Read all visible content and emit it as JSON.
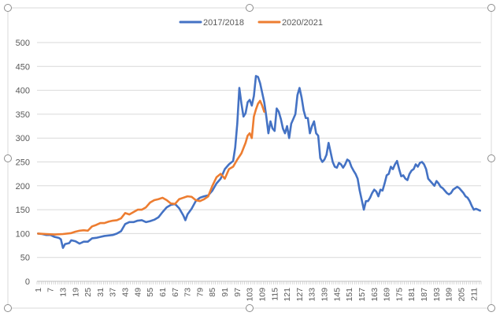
{
  "chart_data": {
    "type": "line",
    "title": "",
    "xlabel": "",
    "ylabel": "",
    "legend_position": "top",
    "grid": {
      "y_major": true,
      "x_major": false
    },
    "ylim": [
      0,
      500
    ],
    "y_ticks": [
      0,
      50,
      100,
      150,
      200,
      250,
      300,
      350,
      400,
      450,
      500
    ],
    "x_range": [
      1,
      214
    ],
    "x_tick_labels": [
      1,
      7,
      13,
      19,
      25,
      31,
      37,
      43,
      49,
      55,
      61,
      67,
      73,
      79,
      85,
      91,
      97,
      103,
      109,
      115,
      121,
      127,
      133,
      139,
      145,
      151,
      157,
      163,
      169,
      175,
      181,
      187,
      193,
      199,
      205,
      211
    ],
    "series": [
      {
        "name": "2017/2018",
        "color": "#4472C4",
        "points": [
          [
            1,
            100
          ],
          [
            3,
            99
          ],
          [
            5,
            97
          ],
          [
            7,
            97
          ],
          [
            9,
            93
          ],
          [
            11,
            91
          ],
          [
            12,
            88
          ],
          [
            13,
            70
          ],
          [
            14,
            78
          ],
          [
            16,
            80
          ],
          [
            17,
            86
          ],
          [
            19,
            84
          ],
          [
            21,
            79
          ],
          [
            23,
            83
          ],
          [
            25,
            83
          ],
          [
            27,
            90
          ],
          [
            29,
            91
          ],
          [
            31,
            93
          ],
          [
            33,
            95
          ],
          [
            35,
            96
          ],
          [
            37,
            97
          ],
          [
            39,
            100
          ],
          [
            41,
            105
          ],
          [
            43,
            120
          ],
          [
            45,
            124
          ],
          [
            47,
            124
          ],
          [
            49,
            127
          ],
          [
            51,
            128
          ],
          [
            53,
            124
          ],
          [
            55,
            126
          ],
          [
            57,
            129
          ],
          [
            59,
            134
          ],
          [
            61,
            145
          ],
          [
            63,
            155
          ],
          [
            65,
            160
          ],
          [
            67,
            162
          ],
          [
            69,
            153
          ],
          [
            71,
            138
          ],
          [
            72,
            128
          ],
          [
            73,
            140
          ],
          [
            75,
            152
          ],
          [
            77,
            168
          ],
          [
            79,
            175
          ],
          [
            81,
            178
          ],
          [
            83,
            180
          ],
          [
            85,
            190
          ],
          [
            87,
            205
          ],
          [
            89,
            215
          ],
          [
            91,
            235
          ],
          [
            93,
            245
          ],
          [
            95,
            252
          ],
          [
            96,
            280
          ],
          [
            97,
            330
          ],
          [
            98,
            405
          ],
          [
            99,
            372
          ],
          [
            100,
            345
          ],
          [
            101,
            352
          ],
          [
            102,
            375
          ],
          [
            103,
            380
          ],
          [
            104,
            368
          ],
          [
            105,
            388
          ],
          [
            106,
            430
          ],
          [
            107,
            428
          ],
          [
            108,
            415
          ],
          [
            109,
            395
          ],
          [
            110,
            375
          ],
          [
            111,
            345
          ],
          [
            112,
            310
          ],
          [
            113,
            335
          ],
          [
            114,
            320
          ],
          [
            115,
            315
          ],
          [
            116,
            362
          ],
          [
            117,
            355
          ],
          [
            118,
            340
          ],
          [
            119,
            320
          ],
          [
            120,
            310
          ],
          [
            121,
            325
          ],
          [
            122,
            300
          ],
          [
            123,
            330
          ],
          [
            124,
            340
          ],
          [
            125,
            350
          ],
          [
            126,
            390
          ],
          [
            127,
            405
          ],
          [
            128,
            385
          ],
          [
            129,
            358
          ],
          [
            130,
            342
          ],
          [
            131,
            342
          ],
          [
            132,
            310
          ],
          [
            133,
            325
          ],
          [
            134,
            335
          ],
          [
            135,
            310
          ],
          [
            136,
            305
          ],
          [
            137,
            258
          ],
          [
            138,
            250
          ],
          [
            139,
            255
          ],
          [
            140,
            265
          ],
          [
            141,
            290
          ],
          [
            142,
            270
          ],
          [
            143,
            250
          ],
          [
            144,
            240
          ],
          [
            145,
            238
          ],
          [
            146,
            248
          ],
          [
            147,
            245
          ],
          [
            148,
            238
          ],
          [
            149,
            245
          ],
          [
            150,
            255
          ],
          [
            151,
            252
          ],
          [
            152,
            240
          ],
          [
            153,
            232
          ],
          [
            154,
            225
          ],
          [
            155,
            215
          ],
          [
            156,
            190
          ],
          [
            157,
            170
          ],
          [
            158,
            150
          ],
          [
            159,
            168
          ],
          [
            160,
            168
          ],
          [
            161,
            175
          ],
          [
            162,
            185
          ],
          [
            163,
            192
          ],
          [
            164,
            188
          ],
          [
            165,
            178
          ],
          [
            166,
            192
          ],
          [
            167,
            190
          ],
          [
            168,
            205
          ],
          [
            169,
            222
          ],
          [
            170,
            225
          ],
          [
            171,
            240
          ],
          [
            172,
            235
          ],
          [
            173,
            245
          ],
          [
            174,
            252
          ],
          [
            175,
            235
          ],
          [
            176,
            220
          ],
          [
            177,
            222
          ],
          [
            178,
            215
          ],
          [
            179,
            212
          ],
          [
            180,
            225
          ],
          [
            181,
            232
          ],
          [
            182,
            235
          ],
          [
            183,
            245
          ],
          [
            184,
            240
          ],
          [
            185,
            248
          ],
          [
            186,
            250
          ],
          [
            187,
            245
          ],
          [
            188,
            235
          ],
          [
            189,
            215
          ],
          [
            190,
            210
          ],
          [
            191,
            205
          ],
          [
            192,
            200
          ],
          [
            193,
            210
          ],
          [
            194,
            205
          ],
          [
            195,
            198
          ],
          [
            196,
            195
          ],
          [
            197,
            190
          ],
          [
            198,
            185
          ],
          [
            199,
            182
          ],
          [
            200,
            185
          ],
          [
            201,
            192
          ],
          [
            202,
            195
          ],
          [
            203,
            198
          ],
          [
            204,
            195
          ],
          [
            205,
            190
          ],
          [
            206,
            185
          ],
          [
            207,
            178
          ],
          [
            208,
            175
          ],
          [
            209,
            168
          ],
          [
            210,
            158
          ],
          [
            211,
            150
          ],
          [
            212,
            152
          ],
          [
            213,
            150
          ],
          [
            214,
            148
          ]
        ]
      },
      {
        "name": "2020/2021",
        "color": "#ED7D31",
        "points": [
          [
            1,
            100
          ],
          [
            5,
            99
          ],
          [
            9,
            98
          ],
          [
            13,
            99
          ],
          [
            17,
            101
          ],
          [
            19,
            104
          ],
          [
            21,
            106
          ],
          [
            23,
            107
          ],
          [
            25,
            106
          ],
          [
            27,
            115
          ],
          [
            29,
            118
          ],
          [
            31,
            122
          ],
          [
            33,
            122
          ],
          [
            35,
            125
          ],
          [
            37,
            127
          ],
          [
            39,
            128
          ],
          [
            41,
            132
          ],
          [
            43,
            143
          ],
          [
            45,
            140
          ],
          [
            47,
            145
          ],
          [
            49,
            150
          ],
          [
            51,
            150
          ],
          [
            53,
            155
          ],
          [
            55,
            165
          ],
          [
            57,
            170
          ],
          [
            59,
            172
          ],
          [
            61,
            175
          ],
          [
            63,
            170
          ],
          [
            65,
            163
          ],
          [
            67,
            162
          ],
          [
            69,
            172
          ],
          [
            71,
            175
          ],
          [
            73,
            178
          ],
          [
            75,
            177
          ],
          [
            77,
            170
          ],
          [
            79,
            168
          ],
          [
            81,
            172
          ],
          [
            83,
            178
          ],
          [
            85,
            200
          ],
          [
            87,
            218
          ],
          [
            89,
            225
          ],
          [
            91,
            215
          ],
          [
            93,
            235
          ],
          [
            95,
            240
          ],
          [
            97,
            255
          ],
          [
            99,
            268
          ],
          [
            101,
            290
          ],
          [
            102,
            305
          ],
          [
            103,
            310
          ],
          [
            104,
            300
          ],
          [
            105,
            345
          ],
          [
            106,
            360
          ],
          [
            107,
            372
          ],
          [
            108,
            378
          ],
          [
            109,
            368
          ],
          [
            110,
            355
          ]
        ]
      }
    ]
  },
  "legend": {
    "items": [
      "2017/2018",
      "2020/2021"
    ]
  }
}
